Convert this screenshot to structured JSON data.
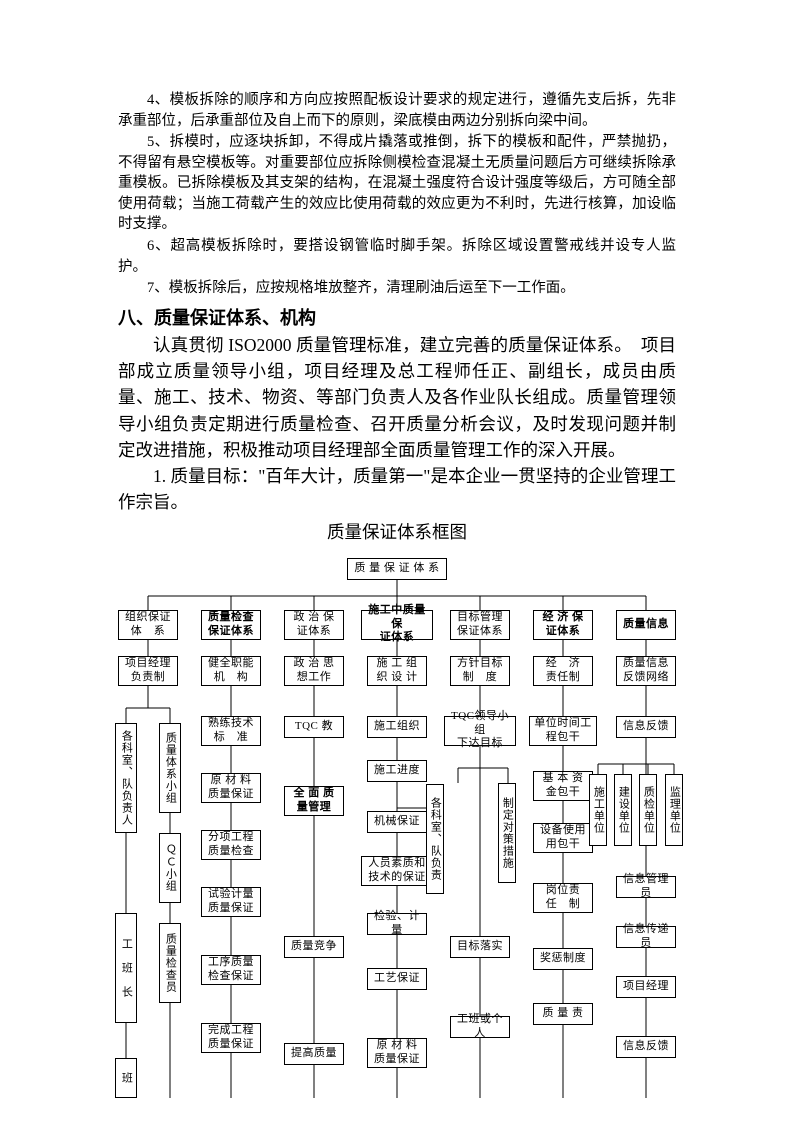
{
  "paragraphs": {
    "p4": "4、模板拆除的顺序和方向应按照配板设计要求的规定进行，遵循先支后拆，先非承重部位，后承重部位及自上而下的原则，梁底模由两边分别拆向梁中间。",
    "p5": "5、拆模时，应逐块拆卸，不得成片撬落或推倒，拆下的模板和配件，严禁抛扔，不得留有悬空模板等。对重要部位应拆除侧模检查混凝土无质量问题后方可继续拆除承重模板。已拆除模板及其支架的结构，在混凝土强度符合设计强度等级后，方可随全部使用荷载；当施工荷载产生的效应比使用荷载的效应更为不利时，先进行核算，加设临时支撑。",
    "p6": "6、超高模板拆除时，要搭设钢管临时脚手架。拆除区域设置警戒线并设专人监护。",
    "p7": "7、模板拆除后，应按规格堆放整齐，清理刷油后运至下一工作面。"
  },
  "heading": "八、质量保证体系、机构",
  "body": "认真贯彻 ISO2000 质量管理标准，建立完善的质量保证体系。　项目部成立质量领导小组，项目经理及总工程师任正、副组长，成员由质量、施工、技术、物资、等部门负责人及各作业队长组成。质量管理领导小组负责定期进行质量检查、召开质量分析会议，及时发现问题并制定改进措施，积极推动项目经理部全面质量管理工作的深入开展。",
  "body2": "1. 质量目标：\"百年大计，质量第一\"是本企业一贯坚持的企业管理工作宗旨。",
  "chart_title": "质量保证体系框图",
  "flow": {
    "root": "质 量 保 证 体 系",
    "cols": [
      {
        "l1": "组织保证\n体　系",
        "l2": "项目经理\n负责制"
      },
      {
        "l1": "质量检查\n保证体系",
        "l2": "健全职能\n机　构",
        "bold": true
      },
      {
        "l1": "政 治 保\n证体系",
        "l2": "政 治 思\n想工作"
      },
      {
        "l1": "施工中质量保\n证体系",
        "l2": "施 工 组\n织 设 计",
        "bold": true
      },
      {
        "l1": "目标管理\n保证体系",
        "l2": "方针目标\n制　度"
      },
      {
        "l1": "经 济 保\n证体系",
        "l2": "经　济\n责任制",
        "bold": true
      },
      {
        "l1": "质量信息",
        "l2": "质量信息\n反馈网络",
        "bold": true
      }
    ],
    "col1_v": [
      "各科室、队负责人",
      "质量体系小组",
      "ＱＣ小组",
      "质量检查员",
      "工　班　长",
      "班"
    ],
    "col2_items": [
      "熟练技术\n标　准",
      "原 材 料\n质量保证",
      "分项工程\n质量检查",
      "试验计量\n质量保证",
      "工序质量\n检查保证",
      "完成工程\n质量保证"
    ],
    "col3_items": [
      "TQC 教",
      "全 面 质\n量管理",
      "质量竞争",
      "提高质量"
    ],
    "col4_items": [
      "施工组织",
      "施工进度",
      "机械保证",
      "人员素质和\n技术的保证",
      "检验、计量",
      "工艺保证",
      "原 材 料\n质量保证"
    ],
    "col4_v": [
      "各科室、队负责"
    ],
    "col5_items": [
      "TQC领导小组\n下达目标",
      "目标落实",
      "工班或个人"
    ],
    "col5_v": [
      "制定对策措施"
    ],
    "col6_items": [
      "单位时间工\n程包干",
      "基 本 资\n金包干",
      "设备使用\n用包干",
      "岗位责\n任　制",
      "奖惩制度",
      "质 量 责"
    ],
    "col7_items": [
      "信息反馈",
      "信息管理员",
      "信息传递员",
      "项目经理",
      "信息反馈"
    ],
    "col7_v": [
      "施工单位",
      "建设单位",
      "质检单位",
      "监理单位"
    ]
  },
  "style": {
    "page_bg": "#ffffff",
    "text_color": "#000000",
    "box_border": "#000000",
    "para_fontsize": 14.5,
    "heading_fontsize": 18,
    "body_fontsize": 17.5,
    "box_fontsize": 11
  }
}
